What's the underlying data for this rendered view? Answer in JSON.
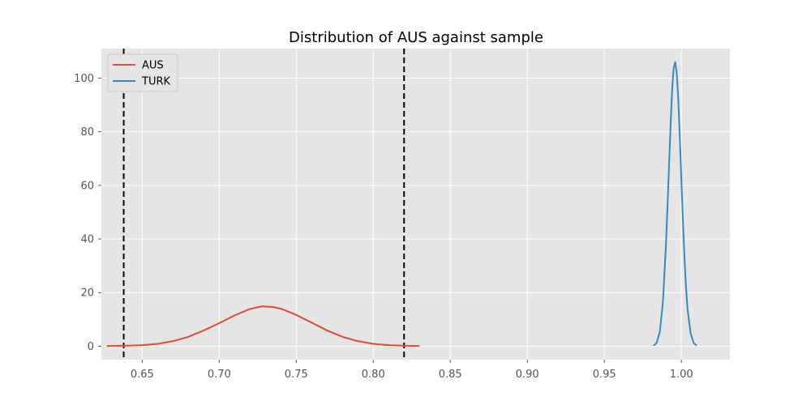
{
  "chart_data": {
    "type": "line",
    "title": "Distribution of AUS against sample",
    "xlabel": "",
    "ylabel": "",
    "xlim": [
      0.6235,
      1.0315
    ],
    "ylim": [
      -5,
      111
    ],
    "xticks": [
      0.65,
      0.7,
      0.75,
      0.8,
      0.85,
      0.9,
      0.95,
      1.0
    ],
    "xtick_labels": [
      "0.65",
      "0.70",
      "0.75",
      "0.80",
      "0.85",
      "0.90",
      "0.95",
      "1.00"
    ],
    "yticks": [
      0,
      20,
      40,
      60,
      80,
      100
    ],
    "ytick_labels": [
      "0",
      "20",
      "40",
      "60",
      "80",
      "100"
    ],
    "grid": true,
    "legend_position": "top-left",
    "series": [
      {
        "name": "AUS",
        "color": "#E24A33",
        "x": [
          0.627,
          0.64,
          0.65,
          0.66,
          0.67,
          0.68,
          0.69,
          0.7,
          0.71,
          0.72,
          0.728,
          0.735,
          0.74,
          0.75,
          0.76,
          0.77,
          0.78,
          0.79,
          0.8,
          0.81,
          0.82,
          0.83
        ],
        "y": [
          0.1,
          0.2,
          0.4,
          0.9,
          1.9,
          3.5,
          5.9,
          8.6,
          11.5,
          13.9,
          14.9,
          14.6,
          14.0,
          11.7,
          8.8,
          5.9,
          3.5,
          1.9,
          0.9,
          0.4,
          0.2,
          0.1
        ]
      },
      {
        "name": "TURK",
        "color": "#348ABD",
        "x": [
          0.982,
          0.984,
          0.986,
          0.988,
          0.99,
          0.991,
          0.992,
          0.993,
          0.994,
          0.995,
          0.996,
          0.997,
          0.998,
          0.999,
          1.0,
          1.001,
          1.002,
          1.003,
          1.004,
          1.006,
          1.008,
          1.01
        ],
        "y": [
          0.2,
          1.3,
          5.3,
          16.3,
          37.8,
          52.2,
          67.4,
          82.3,
          95.7,
          103.8,
          106.0,
          101.8,
          92.0,
          77.8,
          62.0,
          47.0,
          33.3,
          22.1,
          13.9,
          4.8,
          1.2,
          0.2
        ]
      }
    ],
    "vlines": [
      {
        "x": 0.638,
        "color": "#000000",
        "style": "dashed"
      },
      {
        "x": 0.82,
        "color": "#000000",
        "style": "dashed"
      }
    ]
  }
}
